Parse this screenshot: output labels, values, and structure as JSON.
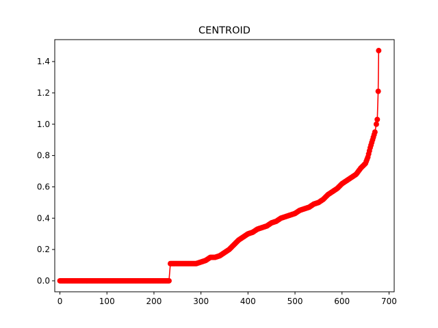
{
  "chart_data": {
    "type": "line",
    "title": "CENTROID",
    "xlabel": "",
    "ylabel": "",
    "xlim": [
      -11,
      711
    ],
    "ylim": [
      -0.07,
      1.54
    ],
    "x_ticks": [
      0,
      100,
      200,
      300,
      400,
      500,
      600,
      700
    ],
    "y_ticks": [
      0.0,
      0.2,
      0.4,
      0.6,
      0.8,
      1.0,
      1.2,
      1.4
    ],
    "x_tick_labels": [
      "0",
      "100",
      "200",
      "300",
      "400",
      "500",
      "600",
      "700"
    ],
    "y_tick_labels": [
      "0.0",
      "0.2",
      "0.4",
      "0.6",
      "0.8",
      "1.0",
      "1.2",
      "1.4"
    ],
    "grid": false,
    "legend": "none",
    "series": [
      {
        "color": "#ff0000",
        "marker": "circle",
        "x": [
          0,
          20,
          40,
          60,
          80,
          100,
          120,
          140,
          160,
          180,
          200,
          220,
          230,
          232,
          235,
          250,
          270,
          290,
          300,
          310,
          320,
          330,
          340,
          350,
          360,
          370,
          380,
          390,
          400,
          410,
          420,
          430,
          440,
          450,
          460,
          470,
          480,
          490,
          500,
          510,
          520,
          530,
          540,
          550,
          560,
          570,
          580,
          590,
          600,
          610,
          620,
          630,
          640,
          650,
          655,
          660,
          665,
          670,
          673,
          675,
          677,
          678
        ],
        "y": [
          0.0,
          0.0,
          0.0,
          0.0,
          0.0,
          0.0,
          0.0,
          0.0,
          0.0,
          0.0,
          0.0,
          0.0,
          0.0,
          0.0,
          0.11,
          0.11,
          0.11,
          0.11,
          0.12,
          0.13,
          0.15,
          0.15,
          0.16,
          0.18,
          0.2,
          0.23,
          0.26,
          0.28,
          0.3,
          0.31,
          0.33,
          0.34,
          0.35,
          0.37,
          0.38,
          0.4,
          0.41,
          0.42,
          0.43,
          0.45,
          0.46,
          0.47,
          0.49,
          0.5,
          0.52,
          0.55,
          0.57,
          0.59,
          0.62,
          0.64,
          0.66,
          0.68,
          0.72,
          0.75,
          0.79,
          0.85,
          0.9,
          0.95,
          1.0,
          1.03,
          1.21,
          1.47
        ]
      }
    ]
  }
}
